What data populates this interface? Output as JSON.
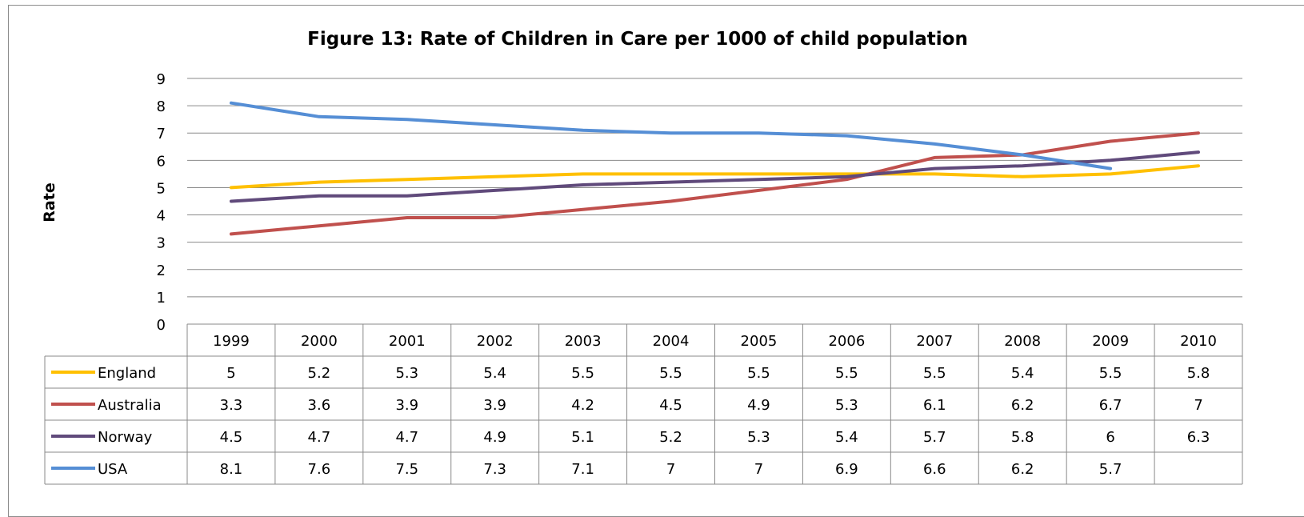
{
  "chart_data": {
    "type": "line",
    "title": "Figure 13: Rate of Children in Care per 1000 of child population",
    "xlabel": "",
    "ylabel": "Rate",
    "ylim": [
      0,
      9
    ],
    "yticks": [
      "0",
      "1",
      "2",
      "3",
      "4",
      "5",
      "6",
      "7",
      "8",
      "9"
    ],
    "grid": true,
    "legend": "data-table",
    "categories": [
      "1999",
      "2000",
      "2001",
      "2002",
      "2003",
      "2004",
      "2005",
      "2006",
      "2007",
      "2008",
      "2009",
      "2010"
    ],
    "series": [
      {
        "name": "England",
        "color": "#FFC000",
        "values": [
          5,
          5.2,
          5.3,
          5.4,
          5.5,
          5.5,
          5.5,
          5.5,
          5.5,
          5.4,
          5.5,
          5.8
        ]
      },
      {
        "name": "Australia",
        "color": "#C0504D",
        "values": [
          3.3,
          3.6,
          3.9,
          3.9,
          4.2,
          4.5,
          4.9,
          5.3,
          6.1,
          6.2,
          6.7,
          7
        ]
      },
      {
        "name": "Norway",
        "color": "#604A7B",
        "values": [
          4.5,
          4.7,
          4.7,
          4.9,
          5.1,
          5.2,
          5.3,
          5.4,
          5.7,
          5.8,
          6,
          6.3
        ]
      },
      {
        "name": "USA",
        "color": "#558ED5",
        "values": [
          8.1,
          7.6,
          7.5,
          7.3,
          7.1,
          7,
          7,
          6.9,
          6.6,
          6.2,
          5.7,
          null
        ]
      }
    ]
  }
}
